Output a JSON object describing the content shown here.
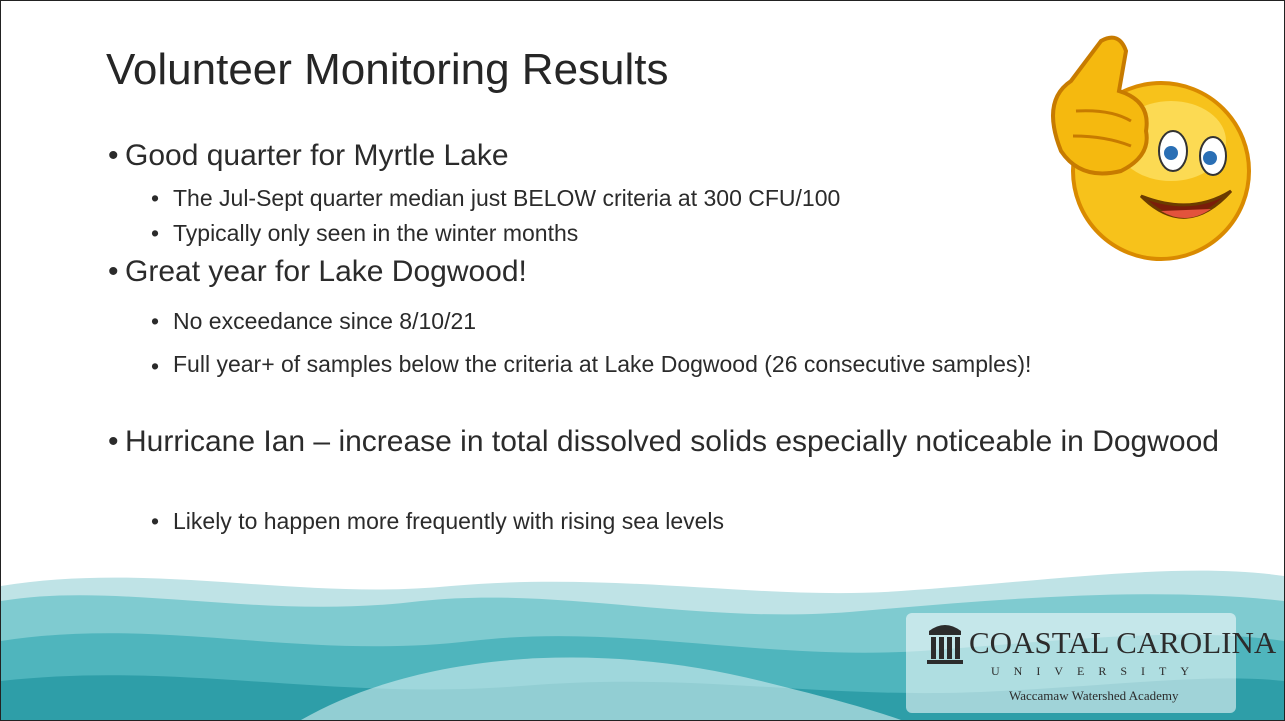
{
  "title": "Volunteer Monitoring Results",
  "bullets": [
    {
      "text": "Good quarter for Myrtle Lake",
      "sub": [
        "The Jul-Sept quarter median just BELOW criteria at 300 CFU/100",
        "Typically only seen in the winter months"
      ]
    },
    {
      "text": "Great year for Lake Dogwood!",
      "sub": [
        "No exceedance since 8/10/21",
        "Full year+ of samples below the criteria at Lake Dogwood (26 consecutive samples)!"
      ]
    },
    {
      "text": "Hurricane Ian – increase in total dissolved solids especially noticeable in Dogwood",
      "sub": [
        "Likely to happen more frequently with rising sea levels"
      ]
    }
  ],
  "logo": {
    "name": "COASTAL CAROLINA",
    "subtitle": "UNIVERSITY",
    "tagline": "Waccamaw Watershed Academy"
  }
}
